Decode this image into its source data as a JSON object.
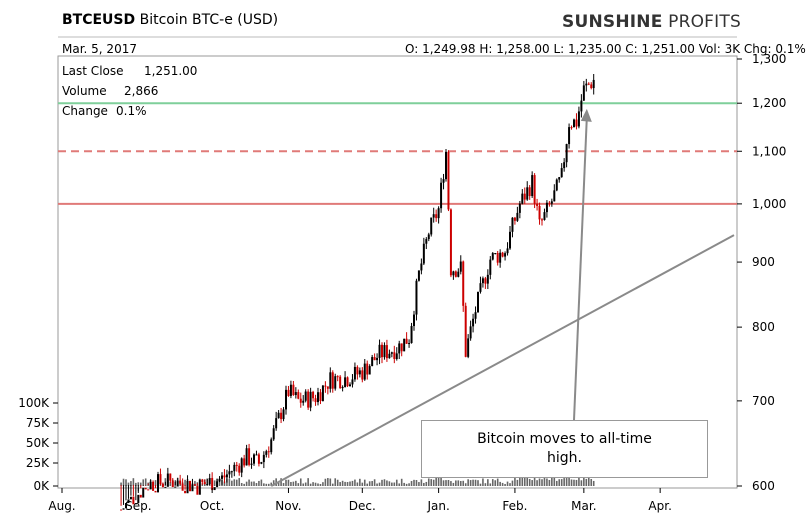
{
  "header": {
    "symbol": "BTCEUSD",
    "name": "Bitcoin BTC-e (USD)",
    "date": "Mar. 5, 2017",
    "ohlc": "O: 1,249.98  H: 1,258.00  L: 1,235.00  C: 1,251.00  Vol: 3K  Chg: 0.1%",
    "logo_bold": "SUNSHINE",
    "logo_light": "PROFITS"
  },
  "stats": {
    "last_close_label": "Last Close",
    "last_close_value": "1,251.00",
    "volume_label": "Volume",
    "volume_value": "2,866",
    "change_label": "Change",
    "change_value": "0.1%"
  },
  "callout": {
    "line1": "Bitcoin moves to all-time",
    "line2": "high."
  },
  "colors": {
    "green_line": "#7fcf9a",
    "red_line": "#e07a78",
    "candle_up": "#000000",
    "candle_down": "#cc0000",
    "trend_line": "#8a8a8a",
    "volume_bar": "#666666"
  },
  "chart_data": {
    "type": "candlestick",
    "y_axis_ticks": [
      "1,300",
      "1,200",
      "1,100",
      "1,000",
      "900",
      "800",
      "700",
      "600"
    ],
    "ylim": [
      600,
      1300
    ],
    "y_scale": "log",
    "x_axis_ticks": [
      "Aug.",
      "Sep.",
      "Oct.",
      "Nov.",
      "Dec.",
      "Jan.",
      "Feb.",
      "Mar.",
      "Apr."
    ],
    "volume_axis_ticks": [
      "100K",
      "75K",
      "50K",
      "25K",
      "0K"
    ],
    "horizontal_levels": [
      {
        "price": 1200,
        "color": "green",
        "style": "solid"
      },
      {
        "price": 1100,
        "color": "red",
        "style": "dashed"
      },
      {
        "price": 1000,
        "color": "red",
        "style": "solid"
      }
    ],
    "trend_line": {
      "from": {
        "x": "2016-10-25",
        "y": 600
      },
      "to": {
        "x": "2017-05-01",
        "y": 945
      }
    },
    "arrow": {
      "from": {
        "x": "2017-02-25",
        "y": 600
      },
      "to": {
        "x": "2017-03-01",
        "y": 1175
      }
    },
    "closes": [
      {
        "date": "2016-08-25",
        "close": 575
      },
      {
        "date": "2016-09-05",
        "close": 602
      },
      {
        "date": "2016-09-15",
        "close": 605
      },
      {
        "date": "2016-09-25",
        "close": 600
      },
      {
        "date": "2016-10-05",
        "close": 608
      },
      {
        "date": "2016-10-15",
        "close": 632
      },
      {
        "date": "2016-10-20",
        "close": 625
      },
      {
        "date": "2016-10-25",
        "close": 652
      },
      {
        "date": "2016-11-01",
        "close": 712
      },
      {
        "date": "2016-11-05",
        "close": 700
      },
      {
        "date": "2016-11-12",
        "close": 705
      },
      {
        "date": "2016-11-18",
        "close": 728
      },
      {
        "date": "2016-11-25",
        "close": 730
      },
      {
        "date": "2016-12-01",
        "close": 738
      },
      {
        "date": "2016-12-08",
        "close": 762
      },
      {
        "date": "2016-12-15",
        "close": 770
      },
      {
        "date": "2016-12-20",
        "close": 785
      },
      {
        "date": "2016-12-24",
        "close": 880
      },
      {
        "date": "2016-12-28",
        "close": 950
      },
      {
        "date": "2017-01-01",
        "close": 990
      },
      {
        "date": "2017-01-04",
        "close": 1100
      },
      {
        "date": "2017-01-06",
        "close": 890
      },
      {
        "date": "2017-01-10",
        "close": 890
      },
      {
        "date": "2017-01-12",
        "close": 765
      },
      {
        "date": "2017-01-16",
        "close": 825
      },
      {
        "date": "2017-01-22",
        "close": 905
      },
      {
        "date": "2017-01-28",
        "close": 918
      },
      {
        "date": "2017-02-03",
        "close": 1000
      },
      {
        "date": "2017-02-08",
        "close": 1040
      },
      {
        "date": "2017-02-11",
        "close": 960
      },
      {
        "date": "2017-02-16",
        "close": 1005
      },
      {
        "date": "2017-02-20",
        "close": 1050
      },
      {
        "date": "2017-02-23",
        "close": 1160
      },
      {
        "date": "2017-02-26",
        "close": 1160
      },
      {
        "date": "2017-03-01",
        "close": 1230
      },
      {
        "date": "2017-03-05",
        "close": 1251
      }
    ]
  }
}
